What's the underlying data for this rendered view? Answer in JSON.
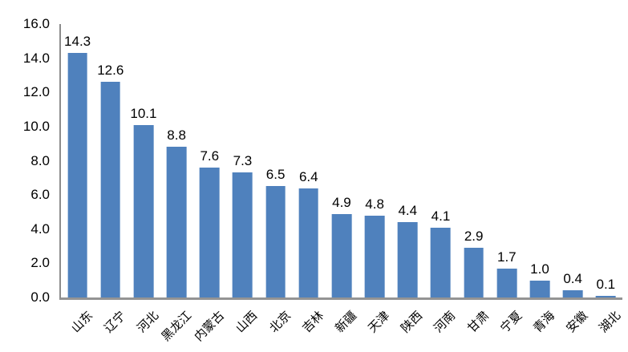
{
  "chart_data": {
    "type": "bar",
    "categories": [
      "山东",
      "辽宁",
      "河北",
      "黑龙江",
      "内蒙古",
      "山西",
      "北京",
      "吉林",
      "新疆",
      "天津",
      "陕西",
      "河南",
      "甘肃",
      "宁夏",
      "青海",
      "安徽",
      "湖北"
    ],
    "values": [
      14.3,
      12.6,
      10.1,
      8.8,
      7.6,
      7.3,
      6.5,
      6.4,
      4.9,
      4.8,
      4.4,
      4.1,
      2.9,
      1.7,
      1.0,
      0.4,
      0.1
    ],
    "title": "",
    "xlabel": "",
    "ylabel": "",
    "ylim": [
      0,
      16
    ],
    "ytick_step": 2,
    "ytick_labels": [
      "0.0",
      "2.0",
      "4.0",
      "6.0",
      "8.0",
      "10.0",
      "12.0",
      "14.0",
      "16.0"
    ],
    "grid": false,
    "legend": false,
    "value_labels_shown": true,
    "bar_color": "#4F81BD",
    "axis_color": "#8C8C8C",
    "text_color": "#000000",
    "background_color": "#FFFFFF"
  }
}
